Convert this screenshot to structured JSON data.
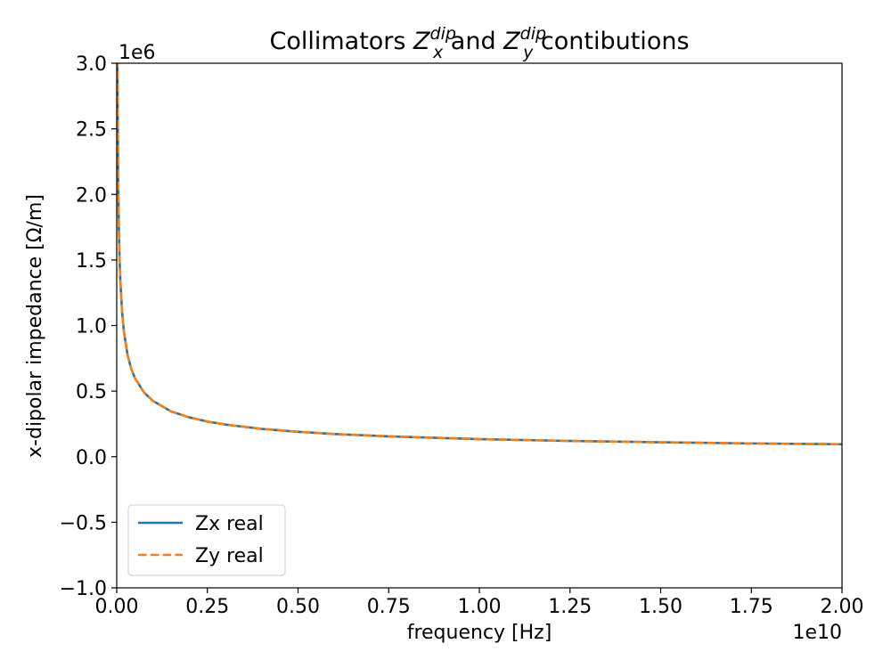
{
  "chart_data": {
    "type": "line",
    "title": {
      "prefix": "Collimators ",
      "sym1": "Z",
      "sup1": "dip",
      "sub1": "x",
      "middle": " and ",
      "sym2": "Z",
      "sup2": "dip",
      "sub2": "y",
      "suffix": " contibutions"
    },
    "xlabel": "frequency [Hz]",
    "ylabel": "x-dipolar impedance [Ω/m]",
    "x_offset_label": "1e10",
    "y_offset_label": "1e6",
    "xlim": [
      0,
      20000000000
    ],
    "ylim": [
      -1000000,
      3000000
    ],
    "x_ticks": [
      0,
      2500000000,
      5000000000,
      7500000000,
      10000000000,
      12500000000,
      15000000000,
      17500000000,
      20000000000
    ],
    "x_tick_labels": [
      "0.00",
      "0.25",
      "0.50",
      "0.75",
      "1.00",
      "1.25",
      "1.50",
      "1.75",
      "2.00"
    ],
    "y_ticks": [
      -1000000,
      -500000,
      0,
      500000,
      1000000,
      1500000,
      2000000,
      2500000,
      3000000
    ],
    "y_tick_labels": [
      "−1.0",
      "−0.5",
      "0.0",
      "0.5",
      "1.0",
      "1.5",
      "2.0",
      "2.5",
      "3.0"
    ],
    "legend_position": "lower-left",
    "grid": false,
    "x": [
      20000000,
      40000000,
      60000000,
      80000000,
      100000000,
      150000000,
      200000000,
      300000000,
      400000000,
      500000000,
      750000000,
      1000000000,
      1500000000,
      2000000000,
      2500000000,
      3000000000,
      4000000000,
      5000000000,
      6000000000,
      7500000000,
      10000000000,
      12500000000,
      15000000000,
      17500000000,
      20000000000
    ],
    "series": [
      {
        "name": "Zx real",
        "color": "#1f77b4",
        "style": "solid",
        "values": [
          3000000,
          2120000,
          1730000,
          1500000,
          1340000,
          1100000,
          950000,
          775000,
          670000,
          600000,
          490000,
          425000,
          345000,
          300000,
          268000,
          245000,
          212000,
          190000,
          173000,
          155000,
          134000,
          120000,
          110000,
          101000,
          95000
        ]
      },
      {
        "name": "Zy real",
        "color": "#ff7f0e",
        "style": "dashed",
        "values": [
          3000000,
          2120000,
          1730000,
          1500000,
          1340000,
          1100000,
          950000,
          775000,
          670000,
          600000,
          490000,
          425000,
          345000,
          300000,
          268000,
          245000,
          212000,
          190000,
          173000,
          155000,
          134000,
          120000,
          110000,
          101000,
          95000
        ]
      }
    ]
  }
}
